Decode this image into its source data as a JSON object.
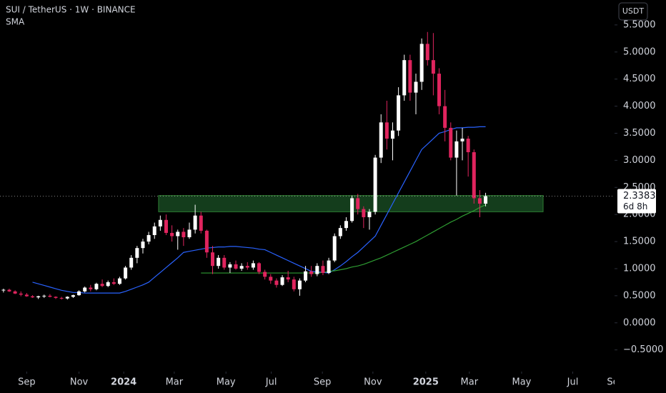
{
  "chart_data": {
    "type": "candlestick",
    "title": "SUI / TetherUS · 1W · BINANCE",
    "indicator": "SMA",
    "currency": "USDT",
    "countdown": "6d 8h",
    "up_color": "#ffffff",
    "down_color": "#e0245e",
    "open": [
      0.6,
      0.61,
      0.58,
      0.54,
      0.52,
      0.49,
      0.47,
      0.49,
      0.5,
      0.48,
      0.46,
      0.45,
      0.48,
      0.51,
      0.58,
      0.65,
      0.62,
      0.72,
      0.68,
      0.75,
      0.72,
      0.82,
      1.02,
      1.2,
      1.38,
      1.5,
      1.62,
      1.78,
      1.9,
      1.66,
      1.6,
      1.68,
      1.58,
      1.72,
      1.98,
      1.7,
      1.3,
      1.05,
      1.2,
      1.02,
      1.08,
      1.0,
      1.05,
      1.02,
      1.1,
      0.94,
      0.85,
      0.78,
      0.7,
      0.84,
      0.8,
      0.62,
      0.78,
      0.95,
      0.9,
      1.05,
      0.92,
      1.15,
      1.6,
      1.75,
      1.88,
      2.3,
      2.1,
      1.95,
      2.05,
      3.05,
      3.7,
      3.4,
      3.55,
      4.2,
      4.85,
      4.25,
      4.45,
      5.15,
      4.85,
      4.6,
      4.0,
      3.6,
      3.05,
      3.35,
      3.4,
      3.15,
      2.3,
      2.2
    ],
    "high": [
      0.63,
      0.63,
      0.6,
      0.58,
      0.55,
      0.51,
      0.5,
      0.52,
      0.53,
      0.49,
      0.48,
      0.49,
      0.52,
      0.6,
      0.67,
      0.7,
      0.74,
      0.8,
      0.78,
      0.82,
      0.85,
      1.05,
      1.25,
      1.42,
      1.55,
      1.68,
      1.85,
      1.98,
      2.0,
      1.8,
      1.72,
      1.75,
      1.85,
      2.18,
      2.05,
      1.72,
      1.42,
      1.25,
      1.25,
      1.12,
      1.15,
      1.1,
      1.12,
      1.15,
      1.12,
      0.98,
      0.9,
      0.82,
      0.88,
      0.96,
      0.85,
      0.82,
      1.05,
      1.05,
      1.1,
      1.15,
      1.2,
      1.65,
      1.8,
      1.95,
      2.35,
      2.38,
      2.15,
      2.1,
      3.1,
      3.85,
      4.1,
      3.7,
      4.35,
      4.95,
      4.95,
      4.6,
      5.25,
      5.37,
      5.35,
      4.7,
      4.3,
      3.7,
      3.55,
      3.6,
      3.45,
      3.2,
      2.45,
      2.4
    ],
    "low": [
      0.56,
      0.57,
      0.53,
      0.49,
      0.48,
      0.46,
      0.44,
      0.46,
      0.47,
      0.44,
      0.43,
      0.43,
      0.46,
      0.5,
      0.56,
      0.58,
      0.6,
      0.66,
      0.66,
      0.7,
      0.7,
      0.8,
      0.98,
      1.1,
      1.28,
      1.45,
      1.55,
      1.7,
      1.62,
      1.5,
      1.35,
      1.42,
      1.55,
      1.65,
      1.65,
      1.2,
      0.9,
      1.0,
      0.98,
      0.92,
      0.98,
      0.96,
      0.98,
      0.98,
      0.9,
      0.8,
      0.72,
      0.65,
      0.68,
      0.75,
      0.58,
      0.5,
      0.75,
      0.85,
      0.86,
      0.88,
      0.9,
      1.12,
      1.55,
      1.7,
      1.85,
      2.0,
      1.75,
      1.72,
      2.0,
      2.95,
      3.2,
      3.0,
      3.45,
      4.1,
      4.1,
      3.85,
      4.3,
      4.75,
      4.2,
      3.85,
      3.35,
      3.0,
      2.35,
      3.0,
      2.7,
      2.2,
      1.95,
      2.15
    ],
    "close": [
      0.61,
      0.58,
      0.54,
      0.52,
      0.49,
      0.47,
      0.49,
      0.5,
      0.48,
      0.46,
      0.45,
      0.48,
      0.51,
      0.58,
      0.65,
      0.62,
      0.72,
      0.68,
      0.75,
      0.72,
      0.82,
      1.02,
      1.2,
      1.38,
      1.5,
      1.62,
      1.78,
      1.9,
      1.66,
      1.6,
      1.68,
      1.58,
      1.72,
      1.98,
      1.7,
      1.3,
      1.05,
      1.2,
      1.02,
      1.08,
      1.0,
      1.05,
      1.02,
      1.1,
      0.94,
      0.85,
      0.78,
      0.7,
      0.84,
      0.8,
      0.62,
      0.78,
      0.95,
      0.9,
      1.05,
      0.92,
      1.15,
      1.6,
      1.75,
      1.88,
      2.3,
      2.1,
      1.95,
      2.05,
      3.05,
      3.7,
      3.4,
      3.55,
      4.2,
      4.85,
      4.25,
      4.45,
      5.15,
      4.85,
      4.6,
      4.0,
      3.6,
      3.05,
      3.35,
      3.4,
      3.15,
      2.3,
      2.2,
      2.3383
    ],
    "series": [
      {
        "color": "#2962ff",
        "values": [
          null,
          null,
          null,
          null,
          null,
          0.75,
          0.72,
          0.69,
          0.66,
          0.63,
          0.6,
          0.58,
          0.56,
          0.56,
          0.55,
          0.55,
          0.55,
          0.55,
          0.55,
          0.55,
          0.55,
          0.58,
          0.62,
          0.66,
          0.7,
          0.75,
          0.84,
          0.93,
          1.02,
          1.11,
          1.2,
          1.3,
          1.32,
          1.34,
          1.36,
          1.38,
          1.39,
          1.4,
          1.4,
          1.41,
          1.41,
          1.4,
          1.39,
          1.38,
          1.36,
          1.35,
          1.3,
          1.25,
          1.2,
          1.15,
          1.1,
          1.05,
          1.0,
          0.95,
          0.94,
          0.93,
          0.92,
          0.98,
          1.05,
          1.13,
          1.22,
          1.3,
          1.4,
          1.5,
          1.6,
          1.8,
          2.0,
          2.2,
          2.4,
          2.6,
          2.8,
          3.0,
          3.2,
          3.3,
          3.4,
          3.5,
          3.53,
          3.57,
          3.6,
          3.6,
          3.61,
          3.61,
          3.62,
          3.62
        ]
      },
      {
        "color": "#2e9d32",
        "values": [
          null,
          null,
          null,
          null,
          null,
          null,
          null,
          null,
          null,
          null,
          null,
          null,
          null,
          null,
          null,
          null,
          null,
          null,
          null,
          null,
          null,
          null,
          null,
          null,
          null,
          null,
          null,
          null,
          null,
          null,
          null,
          null,
          null,
          null,
          0.92,
          0.92,
          0.92,
          0.92,
          0.92,
          0.92,
          0.92,
          0.92,
          0.92,
          0.92,
          0.92,
          0.92,
          0.92,
          0.92,
          0.92,
          0.92,
          0.92,
          0.92,
          0.92,
          0.92,
          0.92,
          0.93,
          0.95,
          0.96,
          0.98,
          1.0,
          1.03,
          1.05,
          1.08,
          1.12,
          1.16,
          1.2,
          1.25,
          1.3,
          1.35,
          1.4,
          1.45,
          1.5,
          1.56,
          1.62,
          1.68,
          1.74,
          1.8,
          1.86,
          1.91,
          1.97,
          2.02,
          2.07,
          2.13,
          2.18
        ]
      }
    ],
    "zone": {
      "y": [
        2.05,
        2.35
      ],
      "x": [
        26.7,
        92.9
      ],
      "color": "#143d1c",
      "edge": "#2e7d32"
    },
    "ylim": [
      -0.9,
      5.96
    ],
    "yticks": [
      {
        "value": -0.5,
        "label": "−0.5000"
      },
      {
        "value": 0,
        "label": "0.0000"
      },
      {
        "value": 0.5,
        "label": "0.5000"
      },
      {
        "value": 1,
        "label": "1.0000"
      },
      {
        "value": 1.5,
        "label": "1.5000"
      },
      {
        "value": 2,
        "label": "2.0000"
      },
      {
        "value": 2.5,
        "label": "2.5000"
      },
      {
        "value": 3,
        "label": "3.0000"
      },
      {
        "value": 3.5,
        "label": "3.5000"
      },
      {
        "value": 4,
        "label": "4.0000"
      },
      {
        "value": 4.5,
        "label": "4.5000"
      },
      {
        "value": 5,
        "label": "5.0000"
      },
      {
        "value": 5.5,
        "label": "5.5000"
      }
    ],
    "xlim": [
      -0.6,
      105.2
    ],
    "xticks": [
      {
        "value": 4,
        "label": "Sep"
      },
      {
        "value": 13,
        "label": "Nov"
      },
      {
        "value": 20.7,
        "label": "2024"
      },
      {
        "value": 29.4,
        "label": "Mar"
      },
      {
        "value": 38.3,
        "label": "May"
      },
      {
        "value": 46.1,
        "label": "Jul"
      },
      {
        "value": 54.9,
        "label": "Sep"
      },
      {
        "value": 63.6,
        "label": "Nov"
      },
      {
        "value": 72.7,
        "label": "2025"
      },
      {
        "value": 80.2,
        "label": "Mar"
      },
      {
        "value": 89.2,
        "label": "May"
      },
      {
        "value": 98,
        "label": "Jul"
      },
      {
        "value": 105.4,
        "label": "Sep"
      }
    ],
    "grid": false
  }
}
